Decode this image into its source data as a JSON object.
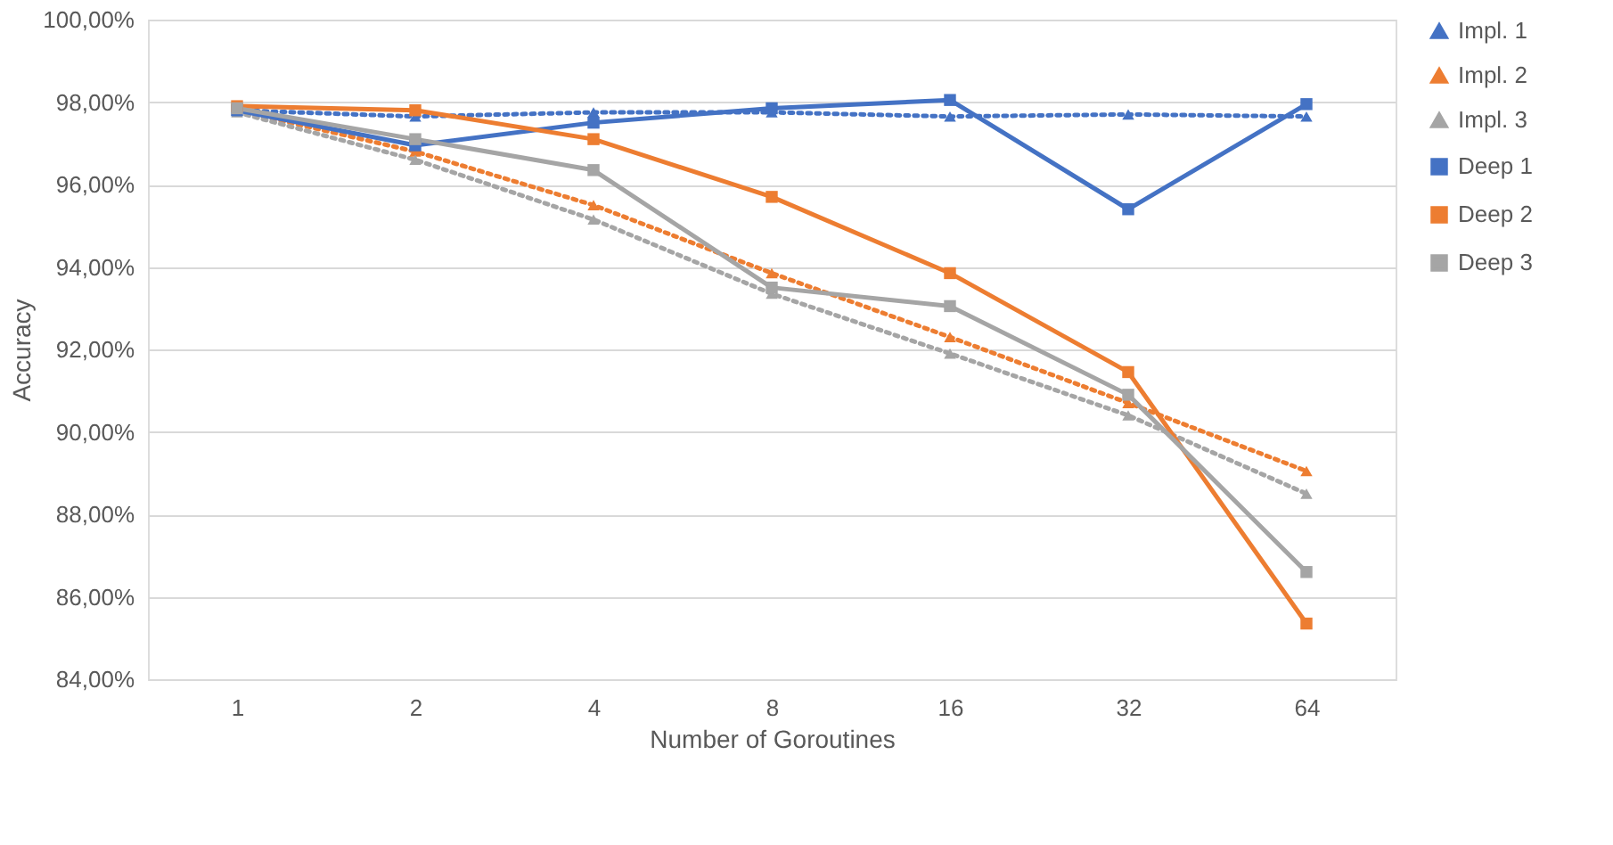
{
  "chart_data": {
    "type": "line",
    "xlabel": "Number  of Goroutines",
    "ylabel": "Accuracy",
    "categories": [
      "1",
      "2",
      "4",
      "8",
      "16",
      "32",
      "64"
    ],
    "ylim": [
      84,
      100
    ],
    "yticks": [
      {
        "value": 84,
        "label": "84,00%"
      },
      {
        "value": 86,
        "label": "86,00%"
      },
      {
        "value": 88,
        "label": "88,00%"
      },
      {
        "value": 90,
        "label": "90,00%"
      },
      {
        "value": 92,
        "label": "92,00%"
      },
      {
        "value": 94,
        "label": "94,00%"
      },
      {
        "value": 96,
        "label": "96,00%"
      },
      {
        "value": 98,
        "label": "98,00%"
      },
      {
        "value": 100,
        "label": "100,00%"
      }
    ],
    "grid": "y",
    "legend": "right",
    "series": [
      {
        "name": "Impl. 1",
        "color": "#4472c4",
        "marker": "triangle",
        "line_style": "dotted",
        "values": [
          97.8,
          97.65,
          97.75,
          97.75,
          97.65,
          97.7,
          97.65
        ]
      },
      {
        "name": "Impl. 2",
        "color": "#ed7d31",
        "marker": "triangle",
        "line_style": "dotted",
        "values": [
          97.8,
          96.8,
          95.5,
          93.85,
          92.3,
          90.7,
          89.05
        ]
      },
      {
        "name": "Impl. 3",
        "color": "#a5a5a5",
        "marker": "triangle",
        "line_style": "dotted",
        "values": [
          97.75,
          96.6,
          95.15,
          93.35,
          91.9,
          90.4,
          88.5
        ]
      },
      {
        "name": "Deep 1",
        "color": "#4472c4",
        "marker": "square",
        "line_style": "solid",
        "values": [
          97.8,
          96.95,
          97.5,
          97.85,
          98.05,
          95.4,
          97.95
        ]
      },
      {
        "name": "Deep 2",
        "color": "#ed7d31",
        "marker": "square",
        "line_style": "solid",
        "values": [
          97.9,
          97.8,
          97.1,
          95.7,
          93.85,
          91.45,
          85.35
        ]
      },
      {
        "name": "Deep 3",
        "color": "#a5a5a5",
        "marker": "square",
        "line_style": "solid",
        "values": [
          97.85,
          97.1,
          96.35,
          93.5,
          93.05,
          90.9,
          86.6
        ]
      }
    ]
  }
}
